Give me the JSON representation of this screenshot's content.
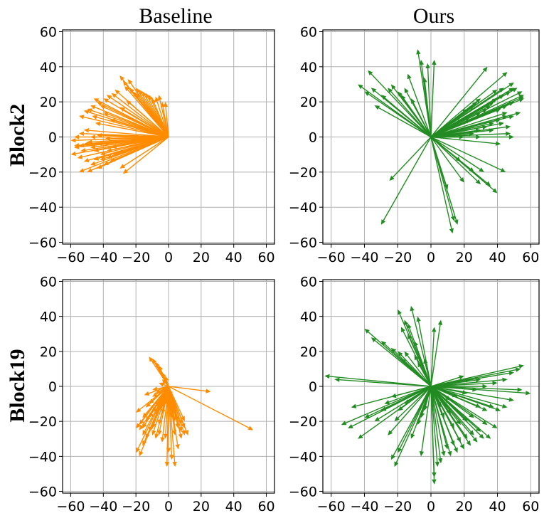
{
  "column_titles": [
    "Baseline",
    "Ours"
  ],
  "row_titles": [
    "Block2",
    "Block19"
  ],
  "colors": {
    "baseline": "#ff8c00",
    "ours": "#228b22",
    "grid": "#b0b0b0"
  },
  "chart_data": [
    {
      "type": "quiver",
      "panel": "Block2-Baseline",
      "color": "#ff8c00",
      "xlim": [
        -65,
        65
      ],
      "ylim": [
        -61,
        61
      ],
      "xticks": [
        -60,
        -40,
        -20,
        0,
        20,
        40,
        60
      ],
      "yticks": [
        60,
        40,
        20,
        0,
        -20,
        -40,
        -60
      ],
      "grid": true,
      "vectors": [
        [
          -30,
          35
        ],
        [
          -27,
          29
        ],
        [
          -24,
          28
        ],
        [
          -22,
          26
        ],
        [
          -20,
          28
        ],
        [
          -18,
          27
        ],
        [
          -16,
          26
        ],
        [
          -14,
          25
        ],
        [
          -12,
          24
        ],
        [
          -10,
          22
        ],
        [
          -8,
          23
        ],
        [
          -6,
          24
        ],
        [
          -4,
          20
        ],
        [
          -2,
          20
        ],
        [
          -35,
          25
        ],
        [
          -38,
          24
        ],
        [
          -40,
          22
        ],
        [
          -44,
          20
        ],
        [
          -48,
          18
        ],
        [
          -50,
          16
        ],
        [
          -52,
          15
        ],
        [
          -55,
          12
        ],
        [
          -46,
          22
        ],
        [
          -42,
          18
        ],
        [
          -40,
          14
        ],
        [
          -36,
          10
        ],
        [
          -47,
          12
        ],
        [
          -45,
          8
        ],
        [
          -52,
          4
        ],
        [
          -55,
          2
        ],
        [
          -58,
          0
        ],
        [
          -60,
          -2
        ],
        [
          -58,
          -5
        ],
        [
          -55,
          -5
        ],
        [
          -52,
          -4
        ],
        [
          -50,
          -3
        ],
        [
          -48,
          -6
        ],
        [
          -44,
          -4
        ],
        [
          -40,
          -4
        ],
        [
          -46,
          -8
        ],
        [
          -42,
          -10
        ],
        [
          -38,
          -8
        ],
        [
          -35,
          -6
        ],
        [
          -60,
          -10
        ],
        [
          -56,
          -12
        ],
        [
          -52,
          -14
        ],
        [
          -48,
          -16
        ],
        [
          -44,
          -18
        ],
        [
          -40,
          -16
        ],
        [
          -36,
          -14
        ],
        [
          -30,
          -18
        ],
        [
          -28,
          -21
        ],
        [
          -50,
          -20
        ],
        [
          -55,
          -20
        ],
        [
          -48,
          0
        ],
        [
          -44,
          1
        ],
        [
          -39,
          -1
        ],
        [
          -24,
          28
        ],
        [
          -33,
          27
        ],
        [
          -28,
          32
        ],
        [
          -25,
          33
        ],
        [
          -20,
          25
        ],
        [
          -26,
          21
        ],
        [
          -30,
          17
        ],
        [
          -58,
          -6
        ],
        [
          -54,
          -8
        ],
        [
          -46,
          -13
        ],
        [
          -42,
          -13
        ],
        [
          -38,
          -12
        ],
        [
          -34,
          -10
        ]
      ]
    },
    {
      "type": "quiver",
      "panel": "Block2-Ours",
      "color": "#228b22",
      "xlim": [
        -65,
        65
      ],
      "ylim": [
        -61,
        61
      ],
      "xticks": [
        -60,
        -40,
        -20,
        0,
        20,
        40,
        60
      ],
      "yticks": [
        60,
        40,
        20,
        0,
        -20,
        -40,
        -60
      ],
      "grid": true,
      "vectors": [
        [
          -8,
          50
        ],
        [
          -6,
          44
        ],
        [
          -2,
          42
        ],
        [
          2,
          44
        ],
        [
          -14,
          36
        ],
        [
          -16,
          28
        ],
        [
          -20,
          26
        ],
        [
          -18,
          24
        ],
        [
          -24,
          30
        ],
        [
          -26,
          28
        ],
        [
          -30,
          24
        ],
        [
          -38,
          38
        ],
        [
          -36,
          28
        ],
        [
          -40,
          26
        ],
        [
          -44,
          30
        ],
        [
          -34,
          18
        ],
        [
          -12,
          22
        ],
        [
          -4,
          34
        ],
        [
          -25,
          -25
        ],
        [
          -30,
          -50
        ],
        [
          10,
          -30
        ],
        [
          14,
          -48
        ],
        [
          16,
          -50
        ],
        [
          13,
          -55
        ],
        [
          20,
          -26
        ],
        [
          18,
          -14
        ],
        [
          30,
          -27
        ],
        [
          36,
          -28
        ],
        [
          40,
          -32
        ],
        [
          32,
          -20
        ],
        [
          45,
          -20
        ],
        [
          26,
          -20
        ],
        [
          34,
          40
        ],
        [
          46,
          37
        ],
        [
          50,
          31
        ],
        [
          56,
          24
        ],
        [
          55,
          26
        ],
        [
          52,
          28
        ],
        [
          48,
          26
        ],
        [
          44,
          24
        ],
        [
          40,
          22
        ],
        [
          36,
          18
        ],
        [
          30,
          14
        ],
        [
          24,
          10
        ],
        [
          50,
          20
        ],
        [
          46,
          18
        ],
        [
          42,
          16
        ],
        [
          38,
          20
        ],
        [
          34,
          16
        ],
        [
          30,
          22
        ],
        [
          28,
          20
        ],
        [
          26,
          18
        ],
        [
          22,
          16
        ],
        [
          18,
          12
        ],
        [
          50,
          12
        ],
        [
          54,
          14
        ],
        [
          56,
          22
        ],
        [
          46,
          12
        ],
        [
          42,
          10
        ],
        [
          38,
          8
        ],
        [
          34,
          6
        ],
        [
          30,
          4
        ],
        [
          26,
          2
        ],
        [
          20,
          0
        ],
        [
          40,
          27
        ],
        [
          44,
          28
        ],
        [
          50,
          28
        ],
        [
          56,
          23
        ],
        [
          48,
          2
        ],
        [
          48,
          6
        ],
        [
          46,
          14
        ],
        [
          44,
          8
        ],
        [
          38,
          4
        ],
        [
          50,
          0
        ],
        [
          30,
          0
        ],
        [
          42,
          -4
        ]
      ]
    },
    {
      "type": "quiver",
      "panel": "Block19-Baseline",
      "color": "#ff8c00",
      "xlim": [
        -65,
        65
      ],
      "ylim": [
        -61,
        61
      ],
      "xticks": [
        -60,
        -40,
        -20,
        0,
        20,
        40,
        60
      ],
      "yticks": [
        60,
        40,
        20,
        0,
        -20,
        -40,
        -60
      ],
      "grid": true,
      "vectors": [
        [
          -12,
          17
        ],
        [
          -10,
          16
        ],
        [
          -8,
          14
        ],
        [
          -6,
          12
        ],
        [
          -4,
          8
        ],
        [
          -2,
          6
        ],
        [
          -4,
          4
        ],
        [
          -6,
          2
        ],
        [
          -3,
          -2
        ],
        [
          52,
          -25
        ],
        [
          26,
          -3
        ],
        [
          10,
          -28
        ],
        [
          8,
          -26
        ],
        [
          6,
          -24
        ],
        [
          4,
          -20
        ],
        [
          2,
          -18
        ],
        [
          4,
          -28
        ],
        [
          -2,
          -30
        ],
        [
          -4,
          -32
        ],
        [
          -6,
          -28
        ],
        [
          -8,
          -30
        ],
        [
          -10,
          -28
        ],
        [
          -12,
          -26
        ],
        [
          -14,
          -30
        ],
        [
          -16,
          -24
        ],
        [
          -18,
          -22
        ],
        [
          -20,
          -24
        ],
        [
          -16,
          -28
        ],
        [
          -14,
          -20
        ],
        [
          -12,
          -18
        ],
        [
          -10,
          -15
        ],
        [
          -8,
          -12
        ],
        [
          -6,
          -10
        ],
        [
          -4,
          -8
        ],
        [
          -2,
          -6
        ],
        [
          -20,
          -38
        ],
        [
          -18,
          -40
        ],
        [
          -16,
          -34
        ],
        [
          -1,
          -46
        ],
        [
          4,
          -46
        ],
        [
          2,
          -42
        ],
        [
          0,
          -38
        ],
        [
          6,
          -36
        ],
        [
          8,
          -30
        ],
        [
          10,
          -24
        ],
        [
          -10,
          -6
        ],
        [
          -8,
          -4
        ],
        [
          -10,
          -2
        ],
        [
          -4,
          -16
        ],
        [
          -6,
          -22
        ],
        [
          10,
          -20
        ],
        [
          8,
          -22
        ],
        [
          6,
          -20
        ],
        [
          4,
          -16
        ],
        [
          2,
          -14
        ],
        [
          -14,
          -12
        ],
        [
          -12,
          -10
        ],
        [
          -16,
          -18
        ],
        [
          -10,
          -24
        ],
        [
          -8,
          -16
        ],
        [
          -6,
          -14
        ],
        [
          -4,
          -12
        ],
        [
          -2,
          -10
        ],
        [
          0,
          -8
        ],
        [
          2,
          -6
        ],
        [
          12,
          -28
        ],
        [
          -18,
          -25
        ],
        [
          -20,
          -15
        ],
        [
          -15,
          -5
        ]
      ]
    },
    {
      "type": "quiver",
      "panel": "Block19-Ours",
      "color": "#228b22",
      "xlim": [
        -65,
        65
      ],
      "ylim": [
        -61,
        61
      ],
      "xticks": [
        -60,
        -40,
        -20,
        0,
        20,
        40,
        60
      ],
      "yticks": [
        60,
        40,
        20,
        0,
        -20,
        -40,
        -60
      ],
      "grid": true,
      "vectors": [
        [
          -12,
          46
        ],
        [
          -20,
          44
        ],
        [
          -16,
          38
        ],
        [
          -14,
          36
        ],
        [
          -8,
          40
        ],
        [
          -18,
          34
        ],
        [
          -40,
          33
        ],
        [
          -36,
          28
        ],
        [
          -30,
          26
        ],
        [
          -24,
          22
        ],
        [
          -20,
          20
        ],
        [
          -18,
          16
        ],
        [
          -16,
          20
        ],
        [
          -10,
          18
        ],
        [
          -8,
          14
        ],
        [
          -4,
          16
        ],
        [
          6,
          38
        ],
        [
          2,
          34
        ],
        [
          -10,
          26
        ],
        [
          -14,
          30
        ],
        [
          -64,
          6
        ],
        [
          -58,
          4
        ],
        [
          -48,
          -12
        ],
        [
          -50,
          -24
        ],
        [
          -54,
          -22
        ],
        [
          -44,
          -30
        ],
        [
          -26,
          -28
        ],
        [
          -22,
          -20
        ],
        [
          -20,
          -14
        ],
        [
          -16,
          -10
        ],
        [
          -24,
          -42
        ],
        [
          -22,
          -46
        ],
        [
          -20,
          -38
        ],
        [
          -6,
          -40
        ],
        [
          2,
          -56
        ],
        [
          2,
          -52
        ],
        [
          4,
          -46
        ],
        [
          6,
          -44
        ],
        [
          8,
          -40
        ],
        [
          10,
          -36
        ],
        [
          14,
          -34
        ],
        [
          18,
          -32
        ],
        [
          22,
          -30
        ],
        [
          26,
          -28
        ],
        [
          30,
          -26
        ],
        [
          34,
          -22
        ],
        [
          40,
          -24
        ],
        [
          36,
          -30
        ],
        [
          32,
          -30
        ],
        [
          28,
          -32
        ],
        [
          24,
          -34
        ],
        [
          20,
          -36
        ],
        [
          16,
          -38
        ],
        [
          12,
          -40
        ],
        [
          56,
          12
        ],
        [
          54,
          10
        ],
        [
          50,
          8
        ],
        [
          46,
          4
        ],
        [
          40,
          2
        ],
        [
          34,
          0
        ],
        [
          28,
          -2
        ],
        [
          22,
          -4
        ],
        [
          16,
          -6
        ],
        [
          12,
          -8
        ],
        [
          10,
          -12
        ],
        [
          20,
          6
        ],
        [
          24,
          4
        ],
        [
          30,
          4
        ],
        [
          60,
          -4
        ],
        [
          55,
          -2
        ],
        [
          50,
          -8
        ],
        [
          46,
          -12
        ],
        [
          42,
          -14
        ],
        [
          38,
          -12
        ],
        [
          34,
          -14
        ],
        [
          30,
          -12
        ],
        [
          26,
          -18
        ],
        [
          22,
          -20
        ],
        [
          18,
          -22
        ],
        [
          14,
          -24
        ],
        [
          -40,
          -18
        ],
        [
          -34,
          -20
        ],
        [
          -30,
          -14
        ],
        [
          -28,
          -10
        ],
        [
          -24,
          -6
        ],
        [
          -12,
          -30
        ],
        [
          -8,
          -22
        ],
        [
          -6,
          -18
        ],
        [
          -4,
          -14
        ],
        [
          8,
          -18
        ],
        [
          12,
          -16
        ],
        [
          6,
          -12
        ]
      ]
    }
  ]
}
